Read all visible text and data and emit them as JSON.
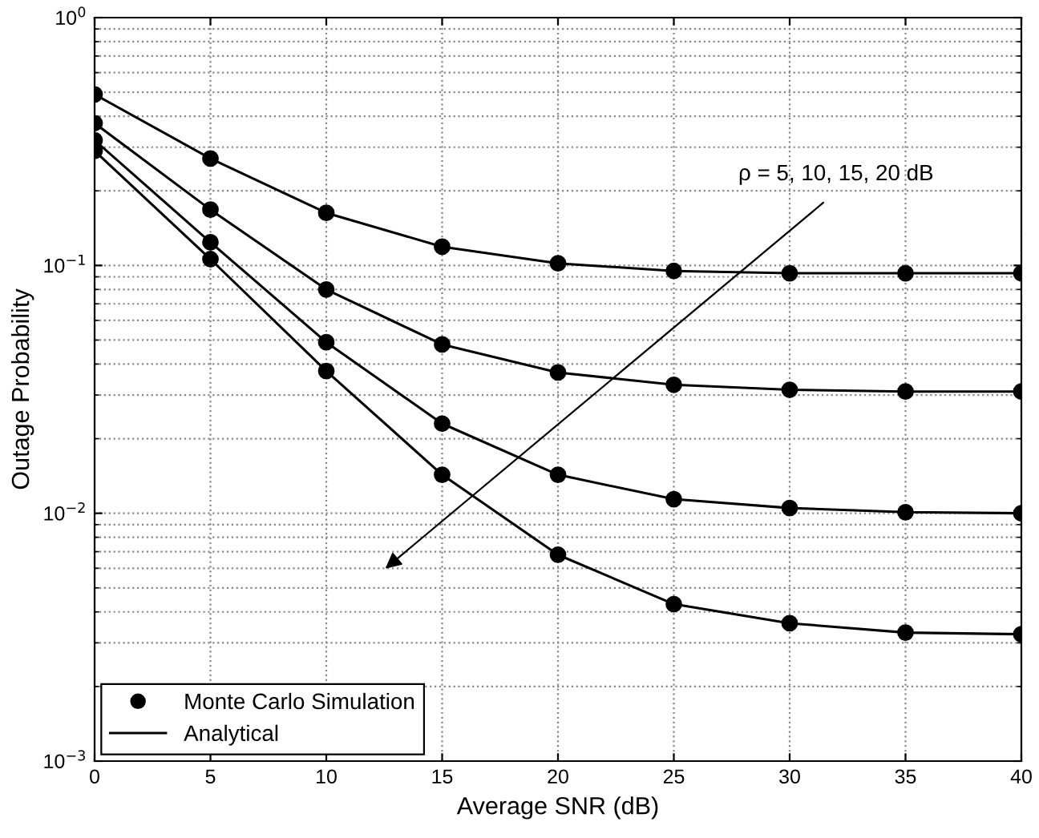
{
  "chart_data": {
    "type": "line",
    "xlabel": "Average SNR (dB)",
    "ylabel": "Outage Probability",
    "x": [
      0,
      5,
      10,
      15,
      20,
      25,
      30,
      35,
      40
    ],
    "series": [
      {
        "type": "scatter",
        "name": "Monte Carlo Simulation",
        "color": "#000000",
        "marker": "circle",
        "values": [
          0.49,
          0.27,
          0.163,
          0.119,
          0.102,
          0.095,
          0.093,
          0.093,
          0.093
        ]
      },
      {
        "type": "scatter",
        "color": "#000000",
        "marker": "circle",
        "values": [
          0.375,
          0.168,
          0.08,
          0.048,
          0.037,
          0.033,
          0.0315,
          0.031,
          0.031
        ]
      },
      {
        "type": "scatter",
        "color": "#000000",
        "marker": "circle",
        "values": [
          0.32,
          0.124,
          0.049,
          0.023,
          0.0143,
          0.0114,
          0.0105,
          0.0101,
          0.01
        ]
      },
      {
        "type": "scatter",
        "color": "#000000",
        "marker": "circle",
        "values": [
          0.29,
          0.106,
          0.0375,
          0.0143,
          0.0068,
          0.0043,
          0.0036,
          0.0033,
          0.00325
        ]
      },
      {
        "name": "Analytical",
        "color": "#000000",
        "line_style": "solid",
        "values": [
          0.49,
          0.27,
          0.163,
          0.119,
          0.102,
          0.095,
          0.093,
          0.093,
          0.093
        ]
      },
      {
        "color": "#000000",
        "line_style": "solid",
        "values": [
          0.375,
          0.168,
          0.08,
          0.048,
          0.037,
          0.033,
          0.0315,
          0.031,
          0.031
        ]
      },
      {
        "color": "#000000",
        "line_style": "solid",
        "values": [
          0.32,
          0.124,
          0.049,
          0.023,
          0.0143,
          0.0114,
          0.0105,
          0.0101,
          0.01
        ]
      },
      {
        "color": "#000000",
        "line_style": "solid",
        "values": [
          0.29,
          0.106,
          0.0375,
          0.0143,
          0.0068,
          0.0043,
          0.0036,
          0.0033,
          0.00325
        ]
      }
    ],
    "log": "y",
    "xlim": [
      0,
      40
    ],
    "xticks": [
      0,
      5,
      10,
      15,
      20,
      25,
      30,
      35,
      40
    ],
    "ylim": [
      0.001,
      1
    ],
    "yticks": [
      {
        "value": 0.001,
        "label": "10$^{−3}$"
      },
      {
        "value": 0.01,
        "label": "10$^{−2}$"
      },
      {
        "value": 0.1,
        "label": "10$^{−1}$"
      },
      {
        "value": 1,
        "label": "10$^{0}$"
      }
    ],
    "grid": true,
    "legend": "bottom left",
    "annotations": [
      "ρ = 5, 10, 15, 20 dB"
    ]
  }
}
